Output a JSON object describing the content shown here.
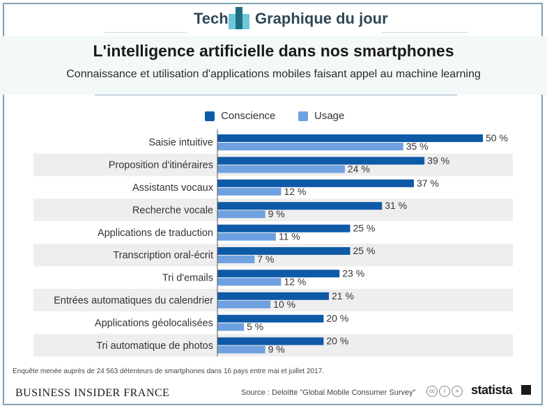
{
  "header": {
    "left_label": "Tech",
    "right_label": "Graphique du jour"
  },
  "colors": {
    "conscience": "#0e5aa7",
    "usage": "#6fa1e0",
    "row_alt": "#eeeeee",
    "logo_dark": "#1f6e80",
    "logo_light": "#6cc8d8"
  },
  "chart_data": {
    "type": "bar",
    "orientation": "horizontal",
    "title": "L'intelligence artificielle dans nos smartphones",
    "subtitle": "Connaissance et utilisation d'applications mobiles faisant appel au machine learning",
    "legend_position": "top-center",
    "value_suffix": " %",
    "categories": [
      "Saisie intuitive",
      "Proposition d'itinéraires",
      "Assistants vocaux",
      "Recherche vocale",
      "Applications de traduction",
      "Transcription oral-écrit",
      "Tri d'emails",
      "Entrées automatiques du calendrier",
      "Applications géolocalisées",
      "Tri automatique de photos"
    ],
    "series": [
      {
        "name": "Conscience",
        "values": [
          50,
          39,
          37,
          31,
          25,
          25,
          23,
          21,
          20,
          20
        ]
      },
      {
        "name": "Usage",
        "values": [
          35,
          24,
          12,
          9,
          11,
          7,
          12,
          10,
          5,
          9
        ]
      }
    ],
    "xlim": [
      0,
      50
    ]
  },
  "footer": {
    "note": "Enquête menée auprès de 24 563 détenteurs de smartphones dans 16 pays entre mai et juillet 2017.",
    "brand": "BUSINESS INSIDER FRANCE",
    "source": "Source : Deloitte \"Global Mobile Consumer Survey\"",
    "license_icons": [
      "cc",
      "i",
      "="
    ],
    "statista": "statista"
  }
}
